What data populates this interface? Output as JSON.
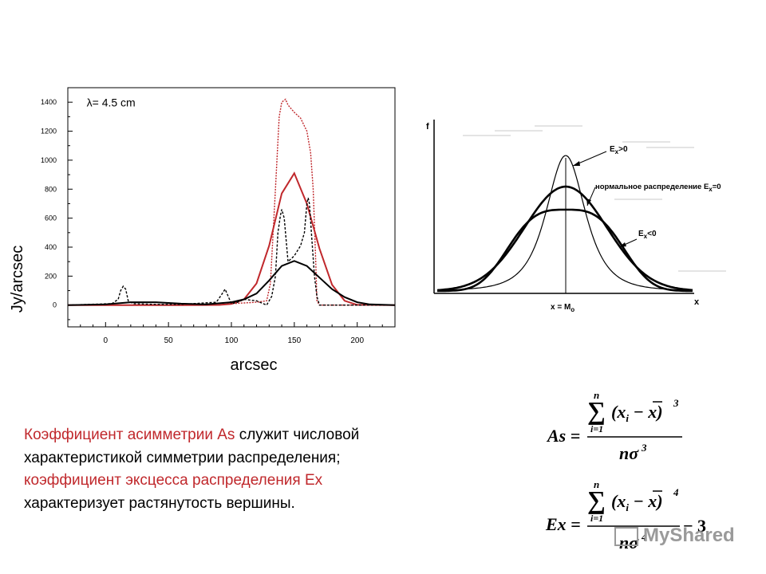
{
  "chart_data": [
    {
      "type": "line",
      "annotation": "λ= 4.5 cm",
      "xlabel": "arcsec",
      "ylabel": "Jy/arcsec",
      "xlim": [
        -30,
        230
      ],
      "ylim": [
        -150,
        1500
      ],
      "x_ticks": [
        "0",
        "50",
        "100",
        "150",
        "200"
      ],
      "y_ticks": [
        "0",
        "200",
        "400",
        "600",
        "800",
        "1000",
        "1200",
        "1400"
      ],
      "grid": false,
      "series": [
        {
          "style": "red dotted",
          "color": "#c0282c",
          "x": [
            -30,
            0,
            90,
            100,
            110,
            120,
            128,
            131,
            135,
            138,
            140,
            143,
            145,
            150,
            155,
            160,
            163,
            165,
            167,
            168,
            170,
            180,
            230
          ],
          "y": [
            0,
            0,
            0,
            10,
            15,
            20,
            30,
            150,
            800,
            1300,
            1400,
            1420,
            1380,
            1330,
            1290,
            1200,
            1050,
            800,
            300,
            30,
            0,
            0,
            0
          ]
        },
        {
          "style": "red solid",
          "color": "#c0282c",
          "x": [
            -30,
            60,
            90,
            100,
            110,
            120,
            130,
            140,
            150,
            160,
            170,
            180,
            190,
            200,
            230
          ],
          "y": [
            0,
            0,
            1,
            8,
            40,
            150,
            410,
            770,
            910,
            700,
            390,
            140,
            30,
            2,
            0
          ]
        },
        {
          "style": "black dashed",
          "color": "#000000",
          "x": [
            -30,
            5,
            10,
            12,
            14,
            16,
            18,
            22,
            40,
            60,
            88,
            92,
            95,
            98,
            100,
            105,
            110,
            120,
            128,
            132,
            135,
            137,
            139,
            140,
            142,
            145,
            150,
            155,
            158,
            160,
            161,
            162,
            164,
            166,
            168,
            170,
            175,
            230
          ],
          "y": [
            0,
            10,
            40,
            100,
            130,
            110,
            30,
            10,
            5,
            5,
            20,
            70,
            110,
            50,
            10,
            20,
            40,
            30,
            0,
            60,
            200,
            500,
            620,
            660,
            600,
            300,
            340,
            410,
            500,
            700,
            740,
            700,
            450,
            200,
            60,
            0,
            0,
            0
          ]
        },
        {
          "style": "black solid",
          "color": "#000000",
          "x": [
            -30,
            0,
            20,
            40,
            60,
            80,
            100,
            110,
            120,
            130,
            140,
            150,
            160,
            170,
            180,
            190,
            200,
            210,
            230
          ],
          "y": [
            0,
            5,
            20,
            20,
            10,
            5,
            20,
            40,
            80,
            170,
            270,
            305,
            270,
            190,
            110,
            55,
            20,
            5,
            0
          ]
        }
      ]
    },
    {
      "type": "line",
      "ylabel": "f",
      "xlabel": "x",
      "center_label": "x = M",
      "center_label_sub": "o",
      "annotations": [
        {
          "text": "E",
          "sub": "x",
          "suffix": ">0"
        },
        {
          "text": "нормальное распределение  E",
          "sub": "x",
          "suffix": "=0"
        },
        {
          "text": "E",
          "sub": "x",
          "suffix": "<0"
        }
      ],
      "series": [
        {
          "name": "Ex>0",
          "style": "thin",
          "peak": 1.0,
          "sigma": 0.9
        },
        {
          "name": "Ex=0",
          "style": "thick",
          "peak": 0.77,
          "sigma": 1.15
        },
        {
          "name": "Ex<0",
          "style": "thick",
          "peak": 0.6,
          "shape": "flat-top"
        }
      ]
    }
  ],
  "description": {
    "part1_red": "Коэффициент асимметрии As",
    "part1_black": " служит числовой характеристикой симметрии распределения;",
    "part2_red": "коэффициент эксцесса распределения  Ex",
    "part2_black": "характеризует растянутость вершины."
  },
  "formulas": {
    "as_lhs": "As =",
    "ex_lhs": "Ex =",
    "sum_top": "n",
    "sum_bottom": "i=1",
    "sum_sign": "∑",
    "as_num": "(x",
    "sub_i": "i",
    "minus_xbar": " − x)",
    "pow3": "3",
    "pow4": "4",
    "den_n": "nσ",
    "minus3": "− 3"
  },
  "watermark": {
    "text": "MyShared"
  }
}
